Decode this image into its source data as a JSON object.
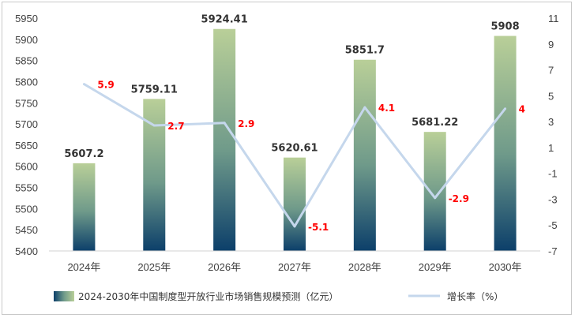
{
  "chart_data": {
    "type": "bar",
    "categories": [
      "2024年",
      "2025年",
      "2026年",
      "2027年",
      "2028年",
      "2029年",
      "2030年"
    ],
    "series": [
      {
        "name": "2024-2030年中国制度型开放行业市场销售规模预测（亿元）",
        "type": "bar",
        "axis": "left",
        "values": [
          5607.2,
          5759.11,
          5924.41,
          5620.61,
          5851.7,
          5681.22,
          5908
        ],
        "labels": [
          "5607.2",
          "5759.11",
          "5924.41",
          "5620.61",
          "5851.7",
          "5681.22",
          "5908"
        ]
      },
      {
        "name": "增长率（%）",
        "type": "line",
        "axis": "right",
        "values": [
          5.9,
          2.7,
          2.9,
          -5.1,
          4.1,
          -2.9,
          4
        ],
        "labels": [
          "5.9",
          "2.7",
          "2.9",
          "-5.1",
          "4.1",
          "-2.9",
          "4"
        ]
      }
    ],
    "y_left": {
      "ylim": [
        5400,
        5950
      ],
      "ticks": [
        "5400",
        "5450",
        "5500",
        "5550",
        "5600",
        "5650",
        "5700",
        "5750",
        "5800",
        "5850",
        "5900",
        "5950"
      ]
    },
    "y_right": {
      "ylim": [
        -7,
        11
      ],
      "ticks": [
        "-7",
        "-5",
        "-3",
        "-1",
        "1",
        "3",
        "5",
        "7",
        "9",
        "11"
      ]
    },
    "legend_position": "bottom",
    "grid": false,
    "colors": {
      "bar_top": "#b9cf98",
      "bar_mid": "#6f9a8a",
      "bar_bottom": "#0c3f6a",
      "line": "#c5d7ec",
      "rate_label": "#ff0000",
      "bar_label": "#333333"
    }
  }
}
